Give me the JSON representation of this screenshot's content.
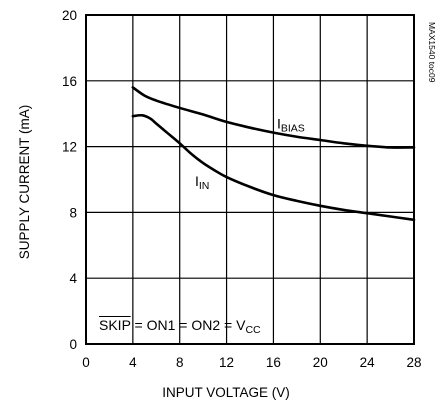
{
  "chart_data": {
    "type": "line",
    "xlabel": "INPUT VOLTAGE (V)",
    "ylabel": "SUPPLY CURRENT (mA)",
    "xlim": [
      0,
      28
    ],
    "ylim": [
      0,
      20
    ],
    "x_ticks": [
      0,
      4,
      8,
      12,
      16,
      20,
      24,
      28
    ],
    "y_ticks": [
      0,
      4,
      8,
      12,
      16,
      20
    ],
    "x_tick_labels": [
      "0",
      "4",
      "8",
      "12",
      "16",
      "20",
      "24",
      "28"
    ],
    "y_tick_labels": [
      "0",
      "4",
      "8",
      "12",
      "16",
      "20"
    ],
    "grid": true,
    "legend": "none",
    "series": [
      {
        "name": "IBIAS",
        "label_main": "I",
        "label_sub": "BIAS",
        "label_at": {
          "x": 16.3,
          "y": 13.1
        },
        "x": [
          4,
          5,
          6,
          8,
          10,
          12,
          14,
          16,
          18,
          20,
          22,
          24,
          26,
          28
        ],
        "values": [
          15.6,
          15.1,
          14.8,
          14.35,
          13.95,
          13.5,
          13.15,
          12.85,
          12.6,
          12.4,
          12.2,
          12.05,
          11.95,
          11.95
        ]
      },
      {
        "name": "IIN",
        "label_main": "I",
        "label_sub": "IN",
        "label_at": {
          "x": 9.3,
          "y": 9.6
        },
        "x": [
          4,
          4.8,
          5.5,
          6,
          7,
          8,
          9,
          10,
          11,
          12,
          14,
          16,
          18,
          20,
          22,
          24,
          26,
          28
        ],
        "values": [
          13.85,
          13.9,
          13.7,
          13.4,
          12.8,
          12.2,
          11.55,
          11.0,
          10.55,
          10.15,
          9.55,
          9.05,
          8.7,
          8.4,
          8.15,
          7.95,
          7.75,
          7.55
        ]
      }
    ],
    "annotations": {
      "condition": {
        "parts": [
          {
            "text": "SKIP",
            "overline": true
          },
          {
            "text": " = ON1 = ON2 = V"
          },
          {
            "text": "CC",
            "sub": true
          }
        ]
      },
      "figure_code": "MAX1540 toc09"
    }
  }
}
